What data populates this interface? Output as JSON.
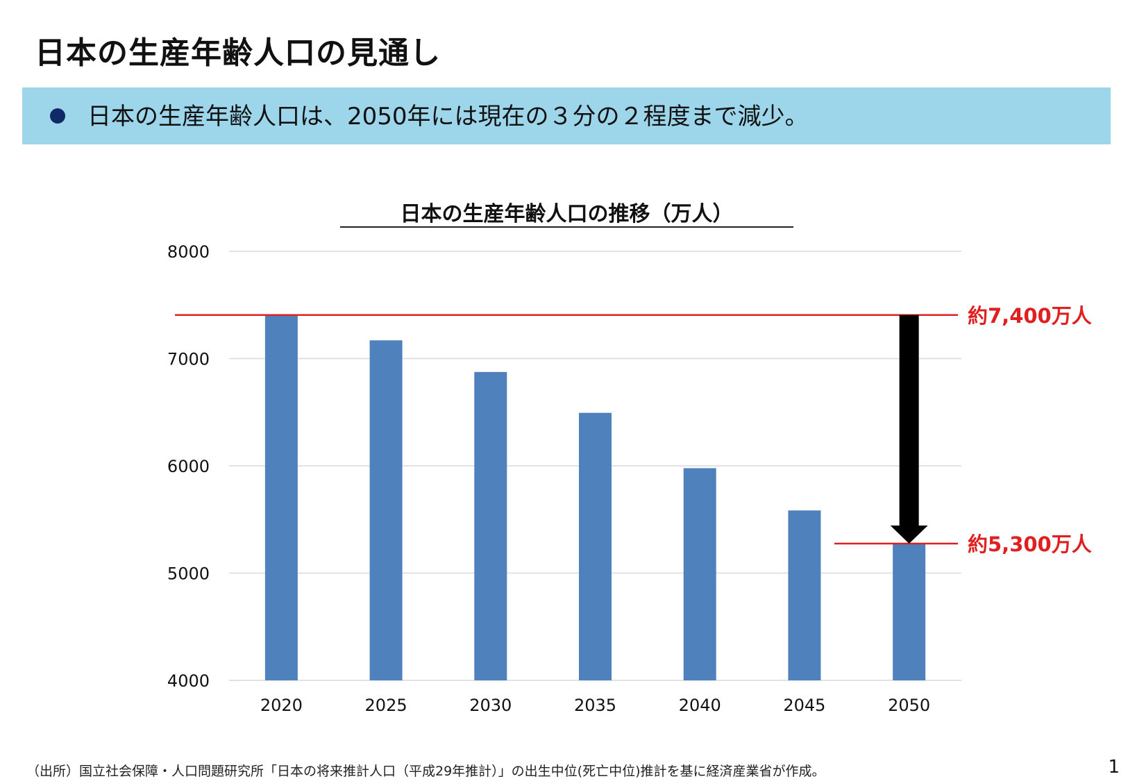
{
  "slide": {
    "title": "日本の生産年齢人口の見通し",
    "summary": "日本の生産年齢人口は、2050年には現在の３分の２程度まで減少。",
    "source_note": "（出所）国立社会保障・人口問題研究所「日本の将来推計人口（平成29年推計）」の出生中位(死亡中位)推計を基に経済産業省が作成。",
    "page_number": "1"
  },
  "colors": {
    "band": "#9dd5ea",
    "bullet": "#0f2a66",
    "bar": "#4f81bd",
    "reference_line": "#e02020",
    "arrow": "#000000",
    "grid": "#d9d9d9"
  },
  "chart_data": {
    "type": "bar",
    "title": "日本の生産年齢人口の推移（万人）",
    "categories": [
      "2020",
      "2025",
      "2030",
      "2035",
      "2040",
      "2045",
      "2050"
    ],
    "values": [
      7406,
      7170,
      6875,
      6494,
      5978,
      5584,
      5275
    ],
    "ylim": [
      4000,
      8000
    ],
    "yticks": [
      4000,
      5000,
      6000,
      7000,
      8000
    ],
    "grid": true,
    "annotations": [
      {
        "label": "約7,400万人",
        "value": 7406
      },
      {
        "label": "約5,300万人",
        "value": 5275
      }
    ],
    "arrow": {
      "from": 7406,
      "to": 5275,
      "category": "2050"
    }
  }
}
